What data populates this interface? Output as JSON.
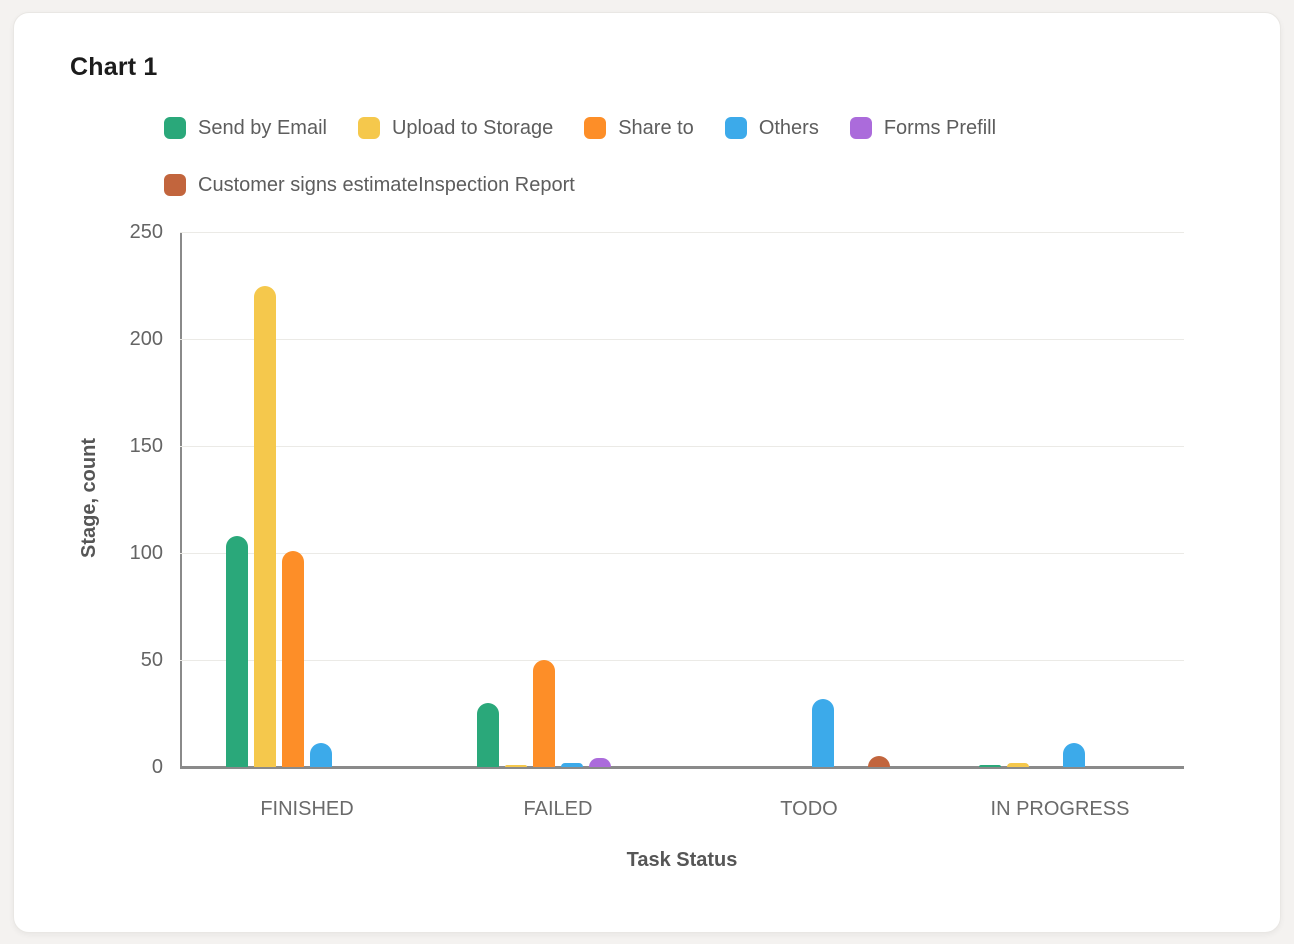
{
  "card": {
    "title": "Chart 1"
  },
  "chart_data": {
    "type": "bar",
    "title": "Chart 1",
    "xlabel": "Task Status",
    "ylabel": "Stage, count",
    "categories": [
      "FINISHED",
      "FAILED",
      "TODO",
      "IN PROGRESS"
    ],
    "series": [
      {
        "name": "Send by Email",
        "color": "#2aa87a",
        "values": [
          108,
          30,
          0,
          1
        ]
      },
      {
        "name": "Upload to Storage",
        "color": "#f5c84c",
        "values": [
          225,
          1,
          0,
          2
        ]
      },
      {
        "name": "Share to",
        "color": "#fd8e28",
        "values": [
          101,
          50,
          0,
          0
        ]
      },
      {
        "name": "Others",
        "color": "#3caaea",
        "values": [
          11,
          2,
          32,
          11
        ]
      },
      {
        "name": "Forms Prefill",
        "color": "#ab6bdb",
        "values": [
          0,
          4,
          0,
          0
        ]
      },
      {
        "name": "Customer signs estimateInspection Report",
        "color": "#c2653d",
        "values": [
          0,
          0,
          5,
          0
        ]
      }
    ],
    "ylim": [
      0,
      250
    ],
    "yticks": [
      0,
      50,
      100,
      150,
      200,
      250
    ],
    "grid": true,
    "legend_position": "top"
  },
  "colors": {
    "page_background": "#f4f2f0",
    "card_background": "#ffffff",
    "axis": "#8a8a8a",
    "gridline": "#ebeae6",
    "tick_text": "#646464",
    "axis_title_text": "#565656",
    "legend_text": "#5d5d5d",
    "title_text": "#1b1b1b"
  }
}
